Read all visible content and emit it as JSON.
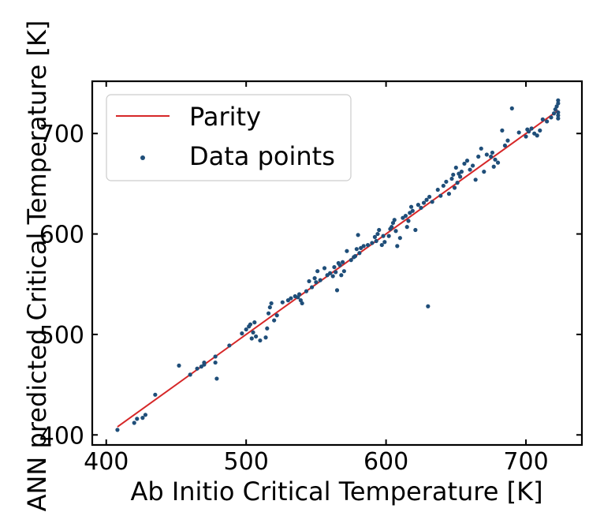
{
  "chart_data": {
    "type": "scatter",
    "title": "",
    "xlabel": "Ab Initio Critical Temperature [K]",
    "ylabel": "ANN predicted Critical Temperature [K]",
    "xlim": [
      390,
      740
    ],
    "ylim": [
      390,
      752
    ],
    "xticks": [
      400,
      500,
      600,
      700
    ],
    "yticks": [
      400,
      500,
      600,
      700
    ],
    "xtick_labels": [
      "400",
      "500",
      "600",
      "700"
    ],
    "ytick_labels": [
      "400",
      "500",
      "600",
      "700"
    ],
    "grid": false,
    "legend_position": "top-left",
    "colors": {
      "parity": "#d62728",
      "points": "#1f4e79"
    },
    "parity": {
      "name": "Parity",
      "x": [
        408,
        723
      ],
      "y": [
        408,
        723
      ]
    },
    "series": [
      {
        "name": "Data points",
        "points": [
          [
            408,
            405
          ],
          [
            420,
            412
          ],
          [
            422,
            416
          ],
          [
            426,
            417
          ],
          [
            428,
            420
          ],
          [
            435,
            440
          ],
          [
            452,
            469
          ],
          [
            460,
            460
          ],
          [
            465,
            466
          ],
          [
            468,
            468
          ],
          [
            470,
            470
          ],
          [
            470,
            472
          ],
          [
            478,
            478
          ],
          [
            478,
            472
          ],
          [
            479,
            456
          ],
          [
            488,
            489
          ],
          [
            497,
            501
          ],
          [
            500,
            505
          ],
          [
            502,
            508
          ],
          [
            503,
            510
          ],
          [
            504,
            496
          ],
          [
            505,
            502
          ],
          [
            506,
            512
          ],
          [
            507,
            498
          ],
          [
            510,
            494
          ],
          [
            514,
            497
          ],
          [
            515,
            506
          ],
          [
            516,
            521
          ],
          [
            517,
            527
          ],
          [
            518,
            531
          ],
          [
            520,
            514
          ],
          [
            522,
            519
          ],
          [
            526,
            532
          ],
          [
            530,
            534
          ],
          [
            532,
            536
          ],
          [
            535,
            538
          ],
          [
            537,
            537
          ],
          [
            538,
            540
          ],
          [
            539,
            534
          ],
          [
            540,
            531
          ],
          [
            543,
            543
          ],
          [
            545,
            553
          ],
          [
            547,
            547
          ],
          [
            549,
            556
          ],
          [
            550,
            552
          ],
          [
            551,
            563
          ],
          [
            553,
            554
          ],
          [
            556,
            566
          ],
          [
            558,
            559
          ],
          [
            560,
            561
          ],
          [
            562,
            558
          ],
          [
            563,
            567
          ],
          [
            564,
            562
          ],
          [
            565,
            544
          ],
          [
            566,
            571
          ],
          [
            567,
            569
          ],
          [
            568,
            559
          ],
          [
            569,
            572
          ],
          [
            570,
            563
          ],
          [
            572,
            583
          ],
          [
            575,
            574
          ],
          [
            577,
            577
          ],
          [
            578,
            578
          ],
          [
            579,
            585
          ],
          [
            580,
            599
          ],
          [
            581,
            581
          ],
          [
            582,
            586
          ],
          [
            584,
            588
          ],
          [
            587,
            589
          ],
          [
            590,
            591
          ],
          [
            592,
            597
          ],
          [
            593,
            593
          ],
          [
            594,
            600
          ],
          [
            595,
            604
          ],
          [
            597,
            589
          ],
          [
            598,
            598
          ],
          [
            599,
            592
          ],
          [
            602,
            598
          ],
          [
            603,
            605
          ],
          [
            604,
            607
          ],
          [
            605,
            611
          ],
          [
            606,
            614
          ],
          [
            607,
            603
          ],
          [
            608,
            588
          ],
          [
            610,
            596
          ],
          [
            612,
            616
          ],
          [
            614,
            618
          ],
          [
            615,
            607
          ],
          [
            616,
            613
          ],
          [
            617,
            621
          ],
          [
            618,
            627
          ],
          [
            619,
            623
          ],
          [
            621,
            604
          ],
          [
            623,
            629
          ],
          [
            625,
            626
          ],
          [
            627,
            631
          ],
          [
            629,
            634
          ],
          [
            630,
            528
          ],
          [
            631,
            637
          ],
          [
            633,
            632
          ],
          [
            637,
            644
          ],
          [
            639,
            638
          ],
          [
            641,
            648
          ],
          [
            643,
            652
          ],
          [
            645,
            640
          ],
          [
            647,
            655
          ],
          [
            648,
            659
          ],
          [
            649,
            646
          ],
          [
            650,
            666
          ],
          [
            651,
            651
          ],
          [
            652,
            660
          ],
          [
            653,
            657
          ],
          [
            654,
            662
          ],
          [
            656,
            670
          ],
          [
            658,
            673
          ],
          [
            660,
            664
          ],
          [
            662,
            668
          ],
          [
            664,
            654
          ],
          [
            666,
            677
          ],
          [
            668,
            685
          ],
          [
            670,
            662
          ],
          [
            672,
            679
          ],
          [
            675,
            677
          ],
          [
            676,
            681
          ],
          [
            677,
            667
          ],
          [
            678,
            674
          ],
          [
            680,
            671
          ],
          [
            683,
            703
          ],
          [
            685,
            688
          ],
          [
            687,
            693
          ],
          [
            690,
            725
          ],
          [
            695,
            701
          ],
          [
            700,
            697
          ],
          [
            701,
            704
          ],
          [
            702,
            702
          ],
          [
            704,
            705
          ],
          [
            706,
            700
          ],
          [
            708,
            698
          ],
          [
            710,
            703
          ],
          [
            712,
            714
          ],
          [
            715,
            712
          ],
          [
            718,
            716
          ],
          [
            720,
            720
          ],
          [
            721,
            724
          ],
          [
            722,
            727
          ],
          [
            723,
            721
          ],
          [
            723,
            718
          ],
          [
            723,
            715
          ],
          [
            723,
            730
          ],
          [
            723,
            733
          ]
        ]
      }
    ]
  }
}
